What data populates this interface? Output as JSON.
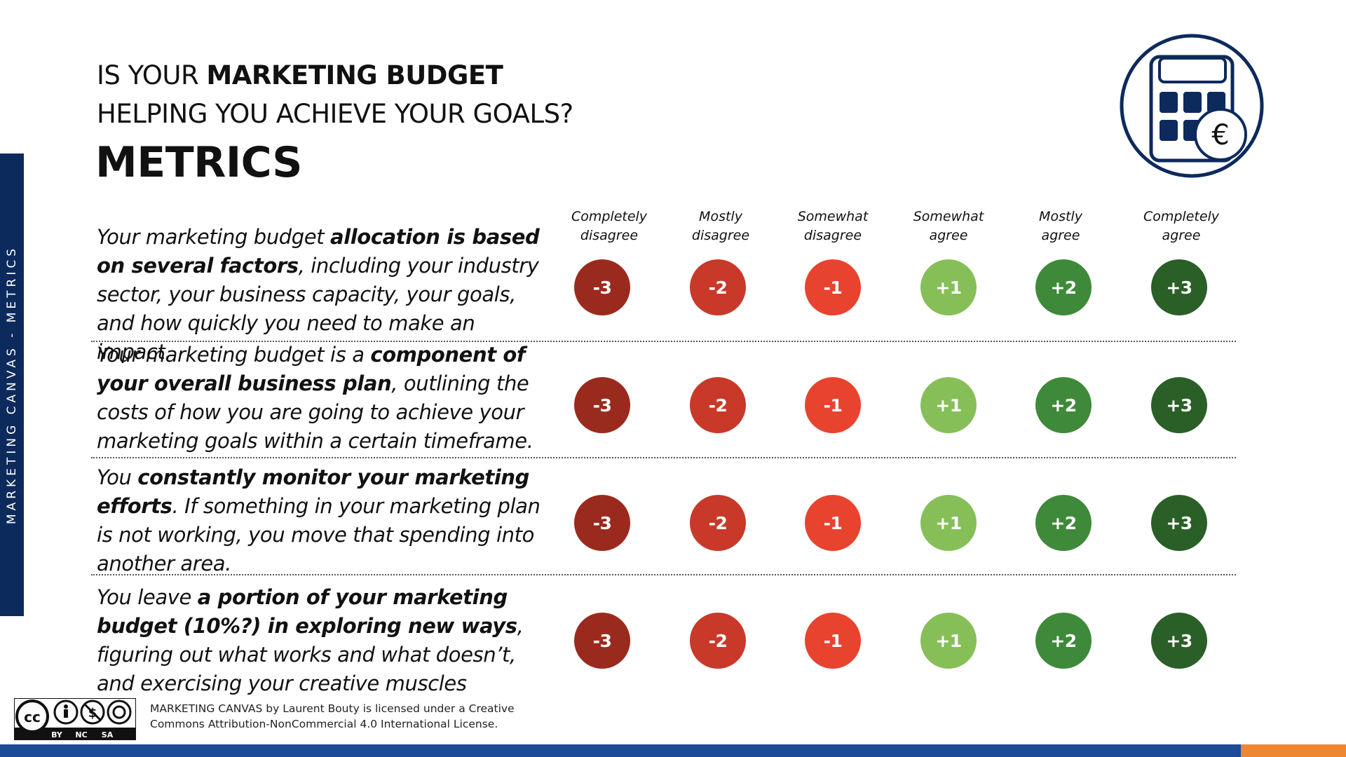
{
  "side_label": "MARKETING CANVAS - METRICS",
  "title": {
    "line1_prefix": "IS YOUR ",
    "line1_bold": "MARKETING BUDGET",
    "line2": "HELPING YOU ACHIEVE YOUR GOALS?"
  },
  "heading": "METRICS",
  "icon": "calculator-euro-icon",
  "scale_headers": [
    {
      "line1": "Completely",
      "line2": "disagree"
    },
    {
      "line1": "Mostly",
      "line2": "disagree"
    },
    {
      "line1": "Somewhat",
      "line2": "disagree"
    },
    {
      "line1": "Somewhat",
      "line2": "agree"
    },
    {
      "line1": "Mostly",
      "line2": "agree"
    },
    {
      "line1": "Completely",
      "line2": "agree"
    }
  ],
  "scale": [
    {
      "label": "-3",
      "color": "#9b2a1e"
    },
    {
      "label": "-2",
      "color": "#c8392a"
    },
    {
      "label": "-1",
      "color": "#e8432f"
    },
    {
      "label": "+1",
      "color": "#86bf58"
    },
    {
      "label": "+2",
      "color": "#3e8a3a"
    },
    {
      "label": "+3",
      "color": "#2a5f27"
    }
  ],
  "statements": [
    {
      "pre": "Your marketing budget ",
      "bold": "allocation is based on several factors",
      "post": ", including your industry sector, your business capacity, your goals, and how quickly you need to make an impact."
    },
    {
      "pre": "Your marketing budget is a ",
      "bold": "component of your overall business plan",
      "post": ", outlining the costs of how you are going to achieve your marketing goals within a certain timeframe."
    },
    {
      "pre": "You ",
      "bold": "constantly monitor your marketing efforts",
      "post": ". If something in your marketing plan is not working, you move that spending into another area."
    },
    {
      "pre": "You leave ",
      "bold": "a portion of your marketing budget (10%?) in exploring new ways",
      "post": ", figuring out what works and what doesn’t, and exercising your creative muscles"
    }
  ],
  "license": {
    "badge_labels": [
      "BY",
      "NC",
      "SA"
    ],
    "line1": "MARKETING CANVAS by Laurent Bouty is licensed under a Creative",
    "line2": "Commons Attribution-NonCommercial 4.0 International License."
  },
  "colors": {
    "navy": "#0d2a5c",
    "bottom_bar": "#1e4a9a",
    "accent": "#ef8732"
  }
}
